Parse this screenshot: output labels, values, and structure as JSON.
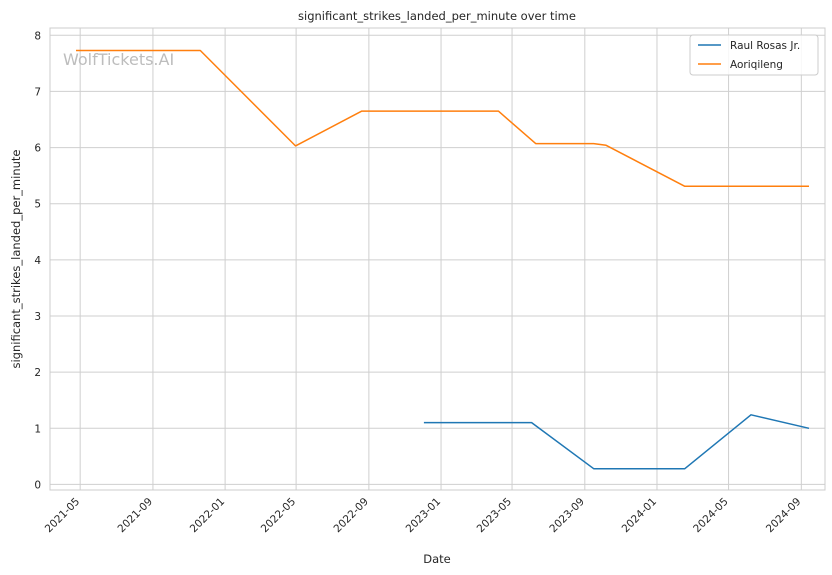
{
  "chart_data": {
    "type": "line",
    "title": "significant_strikes_landed_per_minute over time",
    "xlabel": "Date",
    "ylabel": "significant_strikes_landed_per_minute",
    "xlim": [
      "2021-03-11",
      "2024-10-11"
    ],
    "ylim": [
      -0.1,
      8.13
    ],
    "xticks": [
      "2021-05",
      "2021-09",
      "2022-01",
      "2022-05",
      "2022-09",
      "2023-01",
      "2023-05",
      "2023-09",
      "2024-01",
      "2024-05",
      "2024-09"
    ],
    "yticks": [
      0,
      1,
      2,
      3,
      4,
      5,
      6,
      7,
      8
    ],
    "grid": true,
    "legend": "top-right",
    "watermark": "WolfTickets.AI",
    "series": [
      {
        "name": "Raul Rosas Jr.",
        "color": "#1f77b4",
        "points": [
          {
            "x": "2022-12-03",
            "y": 1.1
          },
          {
            "x": "2023-06-03",
            "y": 1.1
          },
          {
            "x": "2023-09-16",
            "y": 0.28
          },
          {
            "x": "2024-02-17",
            "y": 0.28
          },
          {
            "x": "2024-06-08",
            "y": 1.24
          },
          {
            "x": "2024-09-14",
            "y": 1.0
          }
        ]
      },
      {
        "name": "Aoriqileng",
        "color": "#ff7f0e",
        "points": [
          {
            "x": "2021-04-24",
            "y": 7.73
          },
          {
            "x": "2021-11-20",
            "y": 7.73
          },
          {
            "x": "2022-04-30",
            "y": 6.03
          },
          {
            "x": "2022-08-20",
            "y": 6.65
          },
          {
            "x": "2023-04-08",
            "y": 6.65
          },
          {
            "x": "2023-06-10",
            "y": 6.07
          },
          {
            "x": "2023-09-16",
            "y": 6.07
          },
          {
            "x": "2023-10-07",
            "y": 6.04
          },
          {
            "x": "2024-02-17",
            "y": 5.31
          },
          {
            "x": "2024-09-14",
            "y": 5.31
          }
        ]
      }
    ]
  }
}
